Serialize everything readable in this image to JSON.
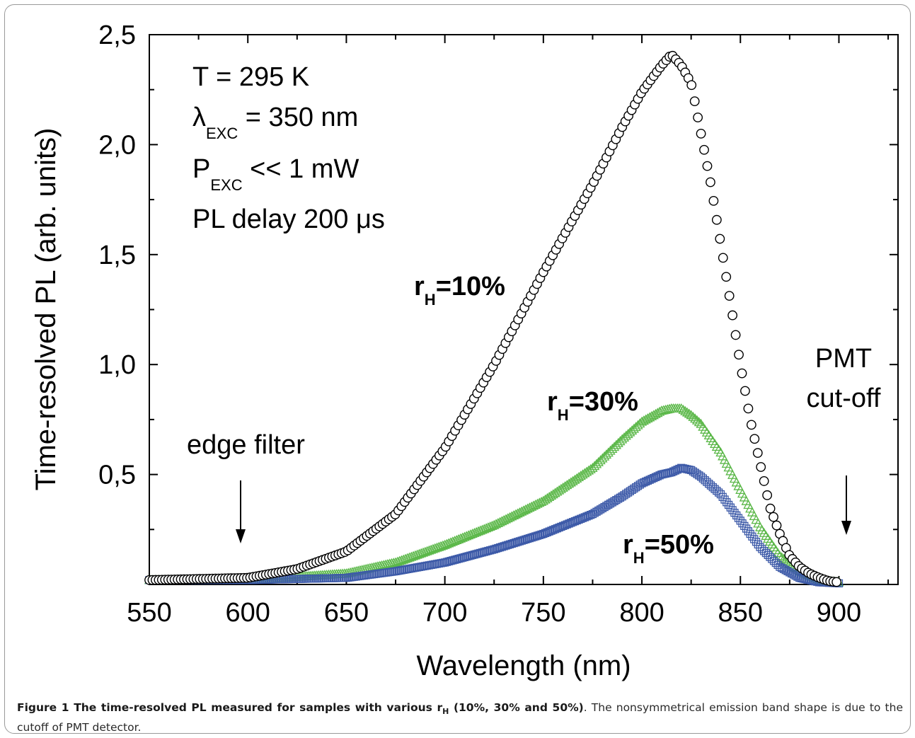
{
  "chart_data": {
    "type": "scatter",
    "xlabel": "Wavelength (nm)",
    "ylabel": "Time-resolved PL (arb. units)",
    "xlim": [
      550,
      930
    ],
    "ylim": [
      0,
      2.5
    ],
    "x_ticks": [
      "550",
      "600",
      "650",
      "700",
      "750",
      "800",
      "850",
      "900"
    ],
    "y_ticks": [
      "0,5",
      "1,0",
      "1,5",
      "2,0",
      "2,5"
    ],
    "series": [
      {
        "name": "rH=10%",
        "marker": "circle",
        "color": "#000000",
        "x": [
          550,
          600,
          625,
          650,
          675,
          700,
          725,
          750,
          775,
          790,
          800,
          810,
          815,
          820,
          825,
          830,
          835,
          840,
          845,
          850,
          855,
          860,
          865,
          870,
          875,
          880,
          885,
          890,
          895,
          900
        ],
        "y": [
          0.02,
          0.03,
          0.07,
          0.15,
          0.32,
          0.62,
          1.0,
          1.42,
          1.82,
          2.08,
          2.24,
          2.36,
          2.41,
          2.36,
          2.28,
          2.05,
          1.82,
          1.55,
          1.28,
          1.0,
          0.75,
          0.55,
          0.35,
          0.23,
          0.13,
          0.08,
          0.05,
          0.03,
          0.015,
          0.01
        ]
      },
      {
        "name": "rH=30%",
        "marker": "triangle",
        "color": "#5cb84a",
        "x": [
          550,
          600,
          650,
          675,
          700,
          725,
          750,
          775,
          790,
          800,
          810,
          815,
          820,
          825,
          830,
          840,
          850,
          860,
          870,
          880,
          890,
          900
        ],
        "y": [
          0.02,
          0.02,
          0.05,
          0.1,
          0.18,
          0.27,
          0.38,
          0.53,
          0.66,
          0.74,
          0.79,
          0.8,
          0.8,
          0.77,
          0.73,
          0.6,
          0.43,
          0.26,
          0.13,
          0.06,
          0.02,
          0.01
        ]
      },
      {
        "name": "rH=50%",
        "marker": "square",
        "color": "#3d5aa8",
        "x": [
          550,
          600,
          650,
          675,
          700,
          725,
          750,
          775,
          790,
          800,
          810,
          815,
          820,
          825,
          830,
          840,
          850,
          860,
          870,
          880,
          890,
          900
        ],
        "y": [
          0.02,
          0.02,
          0.03,
          0.06,
          0.1,
          0.16,
          0.23,
          0.32,
          0.4,
          0.46,
          0.5,
          0.51,
          0.53,
          0.52,
          0.49,
          0.41,
          0.29,
          0.17,
          0.08,
          0.03,
          0.01,
          0.005
        ]
      }
    ],
    "annotations": {
      "conditions": [
        "T = 295 K",
        "λ",
        "EXC",
        " = 350 nm",
        "P",
        "EXC",
        " << 1 mW",
        "PL delay 200 μs"
      ],
      "label_10": [
        "r",
        "H",
        "=10%"
      ],
      "label_30": [
        "r",
        "H",
        "=30%"
      ],
      "label_50": [
        "r",
        "H",
        "=50%"
      ],
      "edge_filter": "edge filter",
      "pmt": [
        "PMT",
        "cut-off"
      ]
    }
  },
  "caption": {
    "bold": [
      "Figure 1 The time-resolved PL measured for samples with various r",
      "H",
      " (10%, 30% and 50%)"
    ],
    "rest": ". The nonsymmetrical emission band shape is due to the cutoff of PMT detector."
  }
}
